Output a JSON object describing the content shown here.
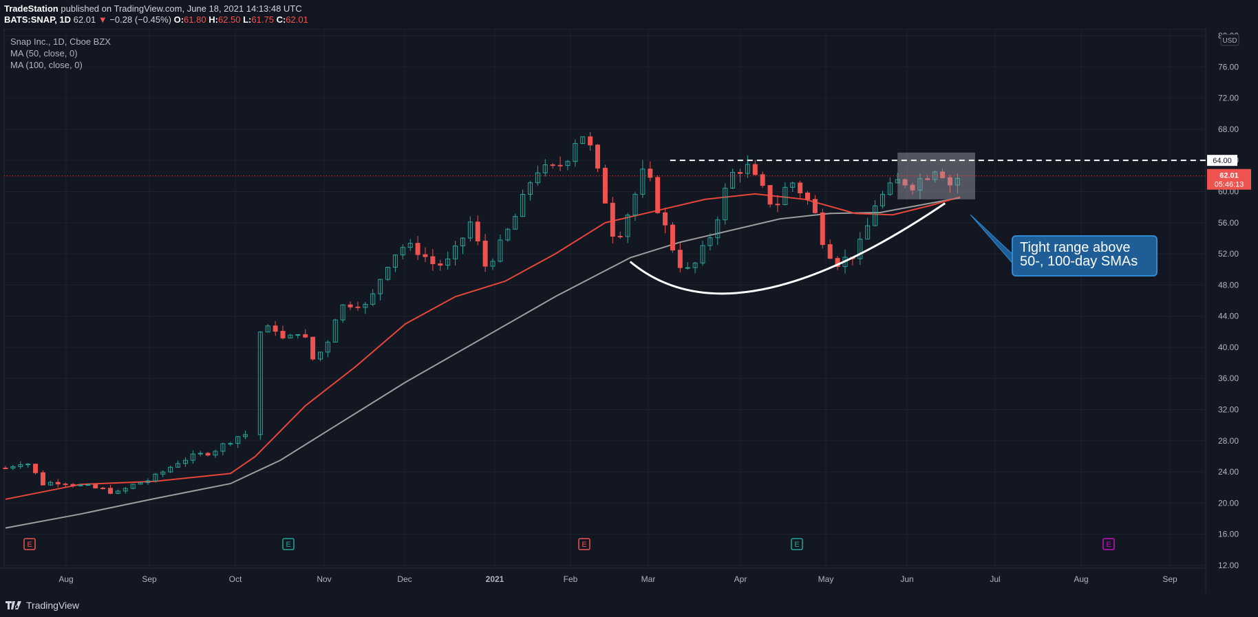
{
  "header": {
    "publisher": "TradeStation",
    "published_text": "published on TradingView.com, June 18, 2021 14:13:48 UTC",
    "symbol": "BATS:SNAP, 1D",
    "last": "62.01",
    "change": "−0.28 (−0.45%)",
    "open_label": "O:",
    "open": "61.80",
    "high_label": "H:",
    "high": "62.50",
    "low_label": "L:",
    "low": "61.75",
    "close_label": "C:",
    "close": "62.01"
  },
  "legend": {
    "title": "Snap Inc., 1D, Cboe BZX",
    "ma50": "MA (50, close, 0)",
    "ma100": "MA (100, close, 0)"
  },
  "currency": "USD",
  "price_tags": {
    "resistance": "64.00",
    "last": "62.01",
    "countdown": "05:46:13"
  },
  "callout": {
    "text": "Tight range above 50-, 100-day SMAs"
  },
  "footer": {
    "brand": "TradingView"
  },
  "colors": {
    "background": "#131722",
    "up": "#26a69a",
    "down": "#ef5350",
    "ma50": "#e8463a",
    "ma100": "#9e9e9e",
    "callout": "#1e5d95"
  },
  "chart_data": {
    "type": "candlestick",
    "title": "Snap Inc., 1D, Cboe BZX",
    "ylim": [
      12,
      80
    ],
    "y_ticks": [
      "80.00",
      "76.00",
      "72.00",
      "68.00",
      "64.00",
      "60.00",
      "56.00",
      "52.00",
      "48.00",
      "44.00",
      "40.00",
      "36.00",
      "32.00",
      "28.00",
      "24.00",
      "20.00",
      "16.00",
      "12.00"
    ],
    "x_ticks": [
      "Aug",
      "Sep",
      "Oct",
      "Nov",
      "Dec",
      "2021",
      "Feb",
      "Mar",
      "Apr",
      "May",
      "Jun",
      "Jul",
      "Aug",
      "Sep"
    ],
    "earnings_markers": [
      {
        "label": "E",
        "date": "Jul",
        "color": "#ef5350"
      },
      {
        "label": "E",
        "date": "Oct",
        "color": "#26a69a"
      },
      {
        "label": "E",
        "date": "Feb",
        "color": "#ef5350"
      },
      {
        "label": "E",
        "date": "Apr",
        "color": "#26a69a"
      },
      {
        "label": "E",
        "date": "Aug",
        "color": "#c511c5"
      }
    ],
    "resistance_level": 64,
    "series": [
      {
        "name": "SNAP close",
        "type": "candlestick",
        "points": [
          {
            "d": 0,
            "c": 24.5
          },
          {
            "d": 8,
            "c": 25.5
          },
          {
            "d": 15,
            "c": 22.5
          },
          {
            "d": 22,
            "c": 22.8
          },
          {
            "d": 30,
            "c": 22.2
          },
          {
            "d": 38,
            "c": 21.8
          },
          {
            "d": 45,
            "c": 21.3
          },
          {
            "d": 52,
            "c": 22.5
          },
          {
            "d": 58,
            "c": 23.0
          },
          {
            "d": 63,
            "c": 24.0
          },
          {
            "d": 70,
            "c": 25.5
          },
          {
            "d": 78,
            "c": 26.2
          },
          {
            "d": 85,
            "c": 27.0
          },
          {
            "d": 92,
            "c": 28.5
          },
          {
            "d": 98,
            "c": 29.0
          },
          {
            "d": 100,
            "c": 36.0
          },
          {
            "d": 102,
            "c": 42.0
          },
          {
            "d": 108,
            "c": 42.5
          },
          {
            "d": 112,
            "c": 40.5
          },
          {
            "d": 118,
            "c": 42.5
          },
          {
            "d": 123,
            "c": 38.5
          },
          {
            "d": 128,
            "c": 40.0
          },
          {
            "d": 133,
            "c": 45.0
          },
          {
            "d": 140,
            "c": 46.0
          },
          {
            "d": 145,
            "c": 45.0
          },
          {
            "d": 152,
            "c": 50.5
          },
          {
            "d": 158,
            "c": 53.0
          },
          {
            "d": 165,
            "c": 52.5
          },
          {
            "d": 172,
            "c": 50.5
          },
          {
            "d": 178,
            "c": 51.0
          },
          {
            "d": 186,
            "c": 56.0
          },
          {
            "d": 192,
            "c": 50.5
          },
          {
            "d": 198,
            "c": 53.0
          },
          {
            "d": 206,
            "c": 58.0
          },
          {
            "d": 212,
            "c": 63.0
          },
          {
            "d": 218,
            "c": 62.5
          },
          {
            "d": 224,
            "c": 64.0
          },
          {
            "d": 230,
            "c": 68.0
          },
          {
            "d": 234,
            "c": 65.5
          },
          {
            "d": 240,
            "c": 59.0
          },
          {
            "d": 244,
            "c": 53.5
          },
          {
            "d": 250,
            "c": 58.0
          },
          {
            "d": 256,
            "c": 63.0
          },
          {
            "d": 262,
            "c": 57.0
          },
          {
            "d": 268,
            "c": 52.0
          },
          {
            "d": 272,
            "c": 49.5
          },
          {
            "d": 277,
            "c": 51.0
          },
          {
            "d": 283,
            "c": 55.0
          },
          {
            "d": 290,
            "c": 62.0
          },
          {
            "d": 296,
            "c": 63.5
          },
          {
            "d": 302,
            "c": 60.5
          },
          {
            "d": 308,
            "c": 58.0
          },
          {
            "d": 314,
            "c": 61.5
          },
          {
            "d": 320,
            "c": 59.5
          },
          {
            "d": 324,
            "c": 57.0
          },
          {
            "d": 328,
            "c": 53.0
          },
          {
            "d": 333,
            "c": 51.0
          },
          {
            "d": 338,
            "c": 51.5
          },
          {
            "d": 343,
            "c": 53.5
          },
          {
            "d": 348,
            "c": 58.5
          },
          {
            "d": 353,
            "c": 60.0
          },
          {
            "d": 358,
            "c": 61.5
          },
          {
            "d": 363,
            "c": 61.0
          },
          {
            "d": 368,
            "c": 62.0
          },
          {
            "d": 373,
            "c": 63.5
          },
          {
            "d": 378,
            "c": 61.0
          },
          {
            "d": 382,
            "c": 62.01
          }
        ]
      },
      {
        "name": "MA (50, close, 0)",
        "points": [
          {
            "d": 0,
            "c": 20.5
          },
          {
            "d": 30,
            "c": 22.4
          },
          {
            "d": 60,
            "c": 22.8
          },
          {
            "d": 90,
            "c": 23.8
          },
          {
            "d": 100,
            "c": 26.0
          },
          {
            "d": 120,
            "c": 32.5
          },
          {
            "d": 140,
            "c": 37.5
          },
          {
            "d": 160,
            "c": 43.0
          },
          {
            "d": 180,
            "c": 46.5
          },
          {
            "d": 200,
            "c": 48.5
          },
          {
            "d": 220,
            "c": 52.0
          },
          {
            "d": 240,
            "c": 56.0
          },
          {
            "d": 260,
            "c": 57.5
          },
          {
            "d": 280,
            "c": 59.0
          },
          {
            "d": 300,
            "c": 59.7
          },
          {
            "d": 320,
            "c": 59.0
          },
          {
            "d": 340,
            "c": 57.2
          },
          {
            "d": 355,
            "c": 57.0
          },
          {
            "d": 370,
            "c": 58.2
          },
          {
            "d": 382,
            "c": 59.3
          }
        ]
      },
      {
        "name": "MA (100, close, 0)",
        "points": [
          {
            "d": 0,
            "c": 16.8
          },
          {
            "d": 30,
            "c": 18.6
          },
          {
            "d": 60,
            "c": 20.6
          },
          {
            "d": 90,
            "c": 22.5
          },
          {
            "d": 110,
            "c": 25.5
          },
          {
            "d": 130,
            "c": 29.5
          },
          {
            "d": 160,
            "c": 35.5
          },
          {
            "d": 190,
            "c": 41.0
          },
          {
            "d": 220,
            "c": 46.5
          },
          {
            "d": 250,
            "c": 51.5
          },
          {
            "d": 270,
            "c": 53.5
          },
          {
            "d": 290,
            "c": 55.0
          },
          {
            "d": 310,
            "c": 56.5
          },
          {
            "d": 330,
            "c": 57.2
          },
          {
            "d": 350,
            "c": 57.3
          },
          {
            "d": 365,
            "c": 58.2
          },
          {
            "d": 382,
            "c": 59.2
          }
        ]
      }
    ]
  }
}
